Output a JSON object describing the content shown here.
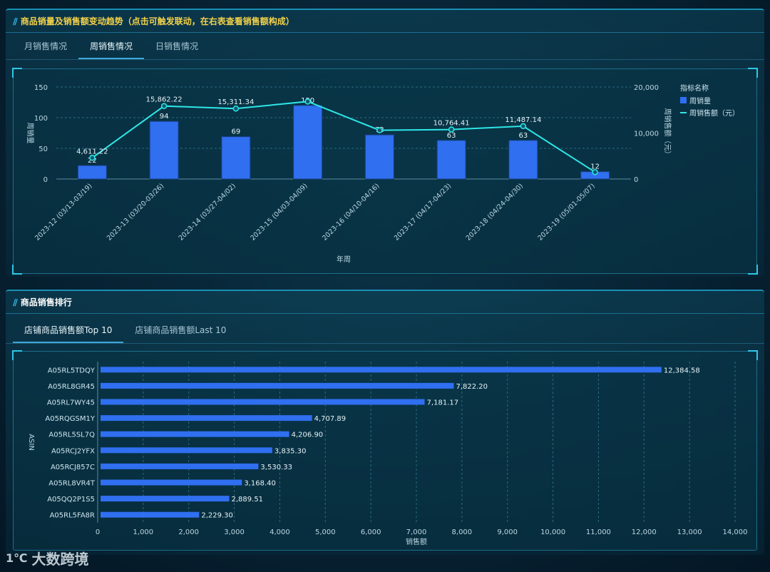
{
  "trend_panel": {
    "title": "商品销量及销售额变动趋势（点击可触发联动，在右表查看销售额构成）",
    "tabs": [
      "月销售情况",
      "周销售情况",
      "日销售情况"
    ],
    "active_tab": 1
  },
  "ranking_panel": {
    "title": "商品销售排行",
    "tabs": [
      "店铺商品销售额Top 10",
      "店铺商品销售额Last 10"
    ],
    "active_tab": 0
  },
  "logo": {
    "mark": "1℃",
    "text": "大数跨境"
  },
  "chart_data": [
    {
      "type": "bar",
      "categories": [
        "2023-12 (03/13-03/19)",
        "2023-13 (03/20-03/26)",
        "2023-14 (03/27-04/02)",
        "2023-15 (04/03-04/09)",
        "2023-16 (04/10-04/16)",
        "2023-17 (04/17-04/23)",
        "2023-18 (04/24-04/30)",
        "2023-19 (05/01-05/07)"
      ],
      "series": [
        {
          "name": "周销量",
          "type": "bar",
          "axis": "left",
          "values": [
            22,
            94,
            69,
            120,
            72,
            63,
            63,
            12
          ],
          "labels": [
            "22",
            "94",
            "69",
            "120",
            "72",
            "63",
            "63",
            "12"
          ]
        },
        {
          "name": "周销售额（元）",
          "type": "line",
          "axis": "right",
          "values": [
            4611.22,
            15862.22,
            15311.34,
            16850,
            10600,
            10764.41,
            11487.14,
            1500
          ],
          "labels": [
            "4,611.22",
            "15,862.22",
            "15,311.34",
            "",
            "",
            "10,764.41",
            "11,487.14",
            ""
          ]
        }
      ],
      "xlabel": "年周",
      "ylabel": "周销量",
      "y2label": "周销售额（元）",
      "ylim": [
        0,
        150
      ],
      "yticks": [
        "0",
        "50",
        "100",
        "150"
      ],
      "y2lim": [
        0,
        20000
      ],
      "y2ticks": [
        "0",
        "10,000",
        "20,000"
      ],
      "legend_title": "指标名称",
      "legend": "right",
      "colors": {
        "bar": "#2f6ff0",
        "line": "#2ee6e6"
      }
    },
    {
      "type": "bar",
      "orientation": "horizontal",
      "categories": [
        "A05RL5TDQY",
        "A05RL8GR45",
        "A05RL7WY45",
        "A05RQGSM1Y",
        "A05RL5SL7Q",
        "A05RCJ2YFX",
        "A05RCJ857C",
        "A05RL8VR4T",
        "A05QQ2P1S5",
        "A05RL5FA8R"
      ],
      "values": [
        12384.58,
        7822.2,
        7181.17,
        4707.89,
        4206.9,
        3835.3,
        3530.33,
        3168.4,
        2889.51,
        2229.3
      ],
      "labels": [
        "12,384.58",
        "7,822.20",
        "7,181.17",
        "4,707.89",
        "4,206.90",
        "3,835.30",
        "3,530.33",
        "3,168.40",
        "2,889.51",
        "2,229.30"
      ],
      "xlabel": "销售额",
      "ylabel": "ASIN",
      "xlim": [
        0,
        14000
      ],
      "xticks": [
        "0",
        "1,000",
        "2,000",
        "3,000",
        "4,000",
        "5,000",
        "6,000",
        "7,000",
        "8,000",
        "9,000",
        "10,000",
        "11,000",
        "12,000",
        "13,000",
        "14,000"
      ],
      "colors": {
        "bar": "#2f6ff0"
      }
    }
  ]
}
